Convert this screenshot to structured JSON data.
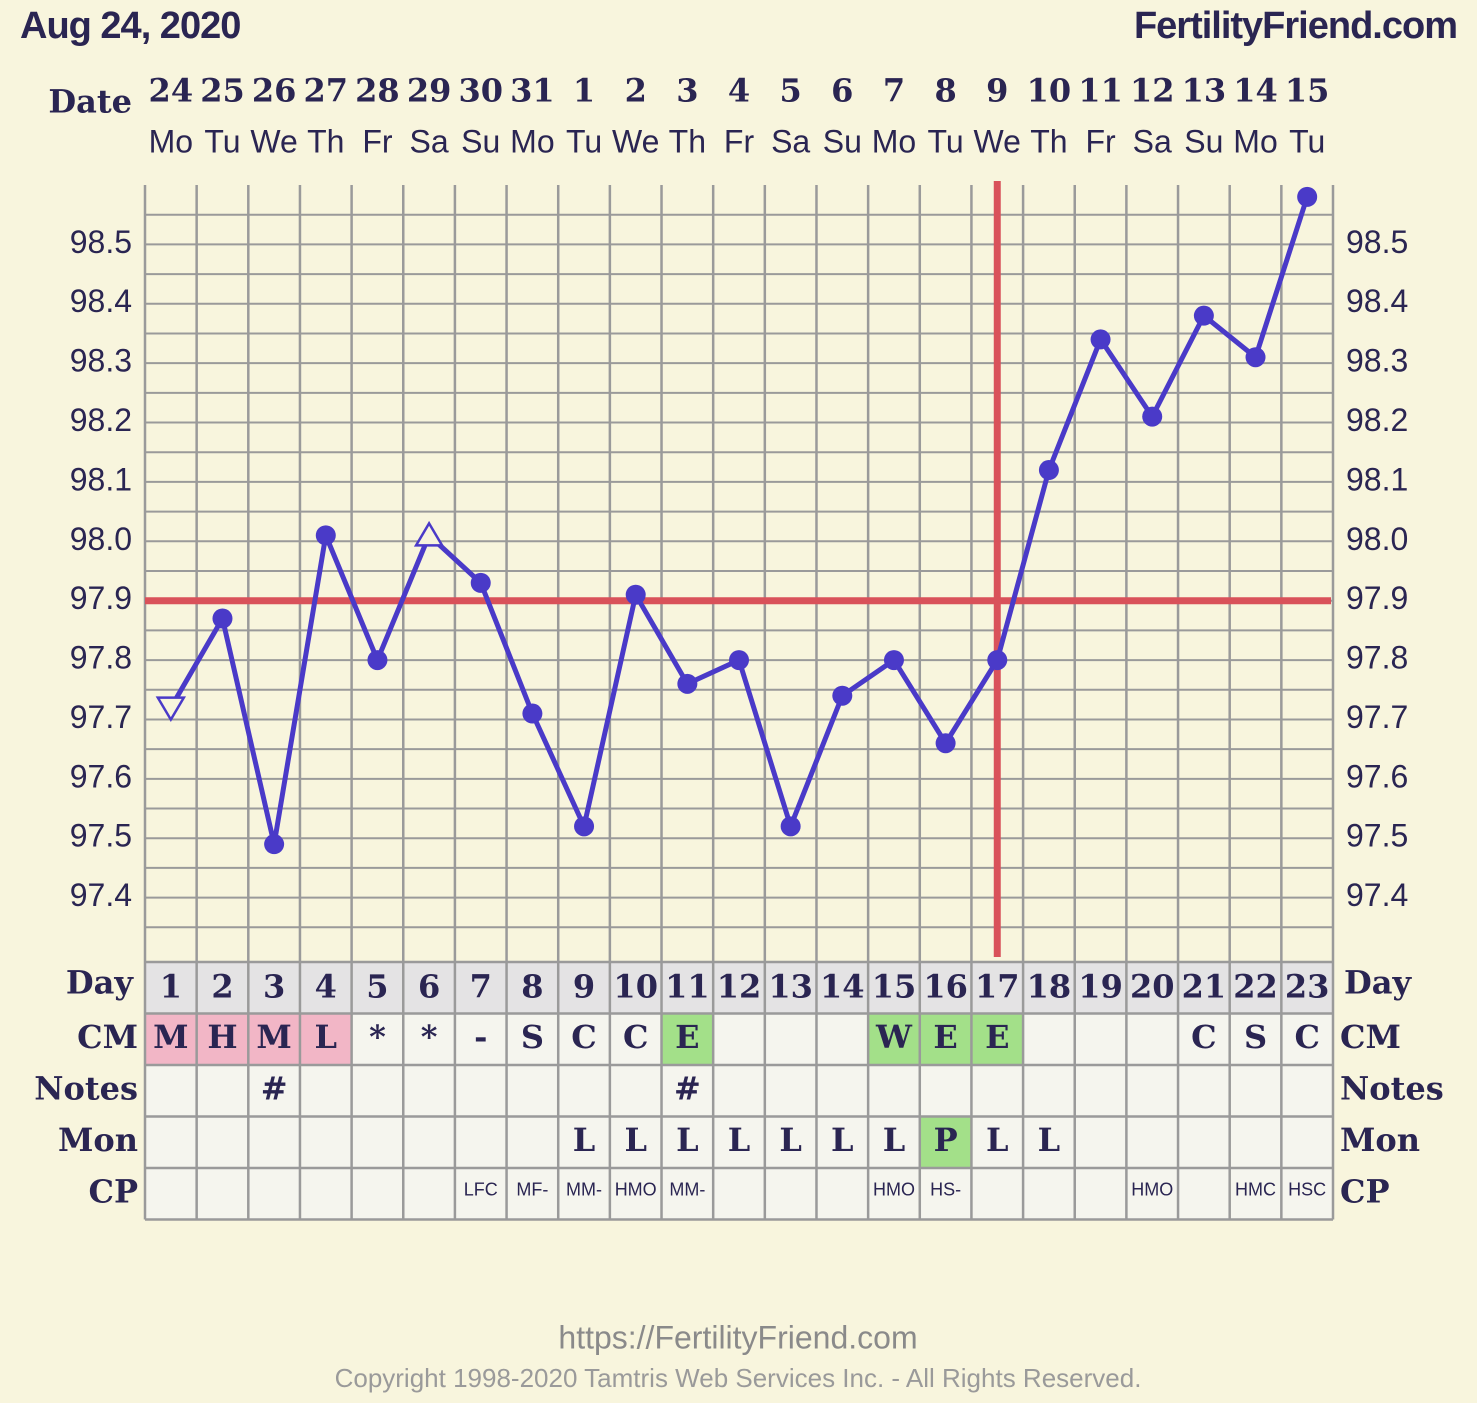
{
  "chart_data": {
    "type": "line",
    "title": "Aug 24, 2020",
    "site": "FertilityFriend.com",
    "date_label": "Date",
    "categories": [
      "24",
      "25",
      "26",
      "27",
      "28",
      "29",
      "30",
      "31",
      "1",
      "2",
      "3",
      "4",
      "5",
      "6",
      "7",
      "8",
      "9",
      "10",
      "11",
      "12",
      "13",
      "14",
      "15"
    ],
    "weekdays": [
      "Mo",
      "Tu",
      "We",
      "Th",
      "Fr",
      "Sa",
      "Su",
      "Mo",
      "Tu",
      "We",
      "Th",
      "Fr",
      "Sa",
      "Su",
      "Mo",
      "Tu",
      "We",
      "Th",
      "Fr",
      "Sa",
      "Su",
      "Mo",
      "Tu"
    ],
    "series": [
      {
        "color": "#4a3ac8",
        "values": [
          97.72,
          97.87,
          97.49,
          98.01,
          97.8,
          98.01,
          97.93,
          97.71,
          97.52,
          97.91,
          97.76,
          97.8,
          97.52,
          97.74,
          97.8,
          97.66,
          97.8,
          98.12,
          98.34,
          98.21,
          98.38,
          98.31,
          98.58
        ],
        "markers": [
          "open-down",
          "dot",
          "dot",
          "dot",
          "dot",
          "open-up",
          "dot",
          "dot",
          "dot",
          "dot",
          "dot",
          "dot",
          "dot",
          "dot",
          "dot",
          "dot",
          "dot",
          "dot",
          "dot",
          "dot",
          "dot",
          "dot",
          "dot"
        ]
      }
    ],
    "ylim": [
      97.3,
      98.6
    ],
    "yticks": [
      97.4,
      97.5,
      97.6,
      97.7,
      97.8,
      97.9,
      {
        "value": 98,
        "label": "98.0"
      },
      98.1,
      98.2,
      98.3,
      98.4,
      98.5
    ],
    "minor_yticks": [
      97.35,
      97.45,
      97.55,
      97.65,
      97.75,
      97.85,
      97.95,
      98.05,
      98.15,
      98.25,
      98.35,
      98.45,
      98.55
    ],
    "grid": true,
    "coverline": {
      "value": 97.9,
      "color": "#d9525a"
    },
    "ovulation_day": 16,
    "day_label": "Day",
    "days": [
      1,
      2,
      3,
      4,
      5,
      6,
      7,
      8,
      9,
      10,
      11,
      12,
      13,
      14,
      15,
      16,
      17,
      18,
      19,
      20,
      21,
      22,
      23
    ],
    "rows": [
      {
        "label": "CM",
        "style": "big",
        "cells": [
          "M",
          "H",
          "M",
          "L",
          "*",
          "*",
          "-",
          "S",
          "C",
          "C",
          "E",
          null,
          null,
          null,
          "W",
          "E",
          "E",
          null,
          null,
          null,
          "C",
          "S",
          "C"
        ],
        "colors": [
          "#f2b6c6",
          "#f2b6c6",
          "#f2b6c6",
          "#f2b6c6",
          null,
          null,
          null,
          null,
          null,
          null,
          "#a3e089",
          null,
          null,
          null,
          "#a3e089",
          "#a3e089",
          "#a3e089",
          null,
          null,
          null,
          null,
          null,
          null
        ]
      },
      {
        "label": "Notes",
        "style": "big",
        "cells": [
          null,
          null,
          "#",
          null,
          null,
          null,
          null,
          null,
          null,
          null,
          "#",
          null,
          null,
          null,
          null,
          null,
          null,
          null,
          null,
          null,
          null,
          null,
          null
        ],
        "colors": [
          null,
          null,
          null,
          null,
          null,
          null,
          null,
          null,
          null,
          null,
          null,
          null,
          null,
          null,
          null,
          null,
          null,
          null,
          null,
          null,
          null,
          null,
          null
        ]
      },
      {
        "label": "Mon",
        "style": "big",
        "cells": [
          null,
          null,
          null,
          null,
          null,
          null,
          null,
          null,
          "L",
          "L",
          "L",
          "L",
          "L",
          "L",
          "L",
          "P",
          "L",
          "L",
          null,
          null,
          null,
          null,
          null
        ],
        "colors": [
          null,
          null,
          null,
          null,
          null,
          null,
          null,
          null,
          null,
          null,
          null,
          null,
          null,
          null,
          null,
          "#a3e089",
          null,
          null,
          null,
          null,
          null,
          null,
          null
        ]
      },
      {
        "label": "CP",
        "style": "small",
        "cells": [
          null,
          null,
          null,
          null,
          null,
          null,
          "LFC",
          "MF-",
          "MM-",
          "HMO",
          "MM-",
          null,
          null,
          null,
          "HMO",
          "HS-",
          null,
          null,
          null,
          "HMO",
          null,
          "HMC",
          "HSC"
        ],
        "colors": [
          null,
          null,
          null,
          null,
          null,
          null,
          null,
          null,
          null,
          null,
          null,
          null,
          null,
          null,
          null,
          null,
          null,
          null,
          null,
          null,
          null,
          null,
          null
        ]
      }
    ],
    "footer_url": "https://FertilityFriend.com",
    "copyright": "Copyright 1998-2020 Tamtris Web Services Inc. - All Rights Reserved."
  }
}
